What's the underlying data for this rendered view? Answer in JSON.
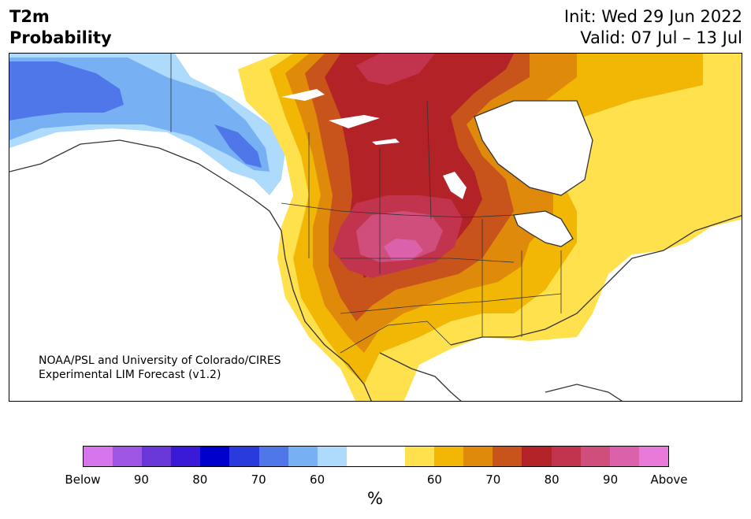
{
  "header": {
    "title_line1": "T2m",
    "title_line2": "Probability",
    "init": "Init: Wed 29 Jun 2022",
    "valid": "Valid: 07 Jul – 13 Jul"
  },
  "credit": {
    "line1": "NOAA/PSL and University of Colorado/CIRES",
    "line2": "Experimental LIM Forecast (v1.2)"
  },
  "colorbar": {
    "colors": [
      "#d675ec",
      "#9e55e3",
      "#6a37d9",
      "#3a1ad6",
      "#0000cd",
      "#2a3bde",
      "#4f77ea",
      "#77b1f3",
      "#aedbfc",
      "#ffffff",
      "#ffffff",
      "#ffe04d",
      "#f2b705",
      "#e08a0c",
      "#c8541b",
      "#b32227",
      "#c2344d",
      "#cf4e7c",
      "#da61aa",
      "#e97ad9"
    ],
    "ticks": [
      "Below",
      "90",
      "80",
      "70",
      "60",
      "60",
      "70",
      "80",
      "90",
      "Above"
    ],
    "unit": "%"
  },
  "map": {
    "palette": {
      "below_60": "#aedbfc",
      "below_70": "#77b1f3",
      "below_80": "#4f77ea",
      "above_50": "#ffe04d",
      "above_60": "#f2b705",
      "above_70": "#e08a0c",
      "above_75": "#c8541b",
      "above_80": "#b32227",
      "above_85": "#c2344d",
      "above_90": "#cf4e7c",
      "above_95": "#da61aa",
      "coast": "#333333"
    }
  }
}
